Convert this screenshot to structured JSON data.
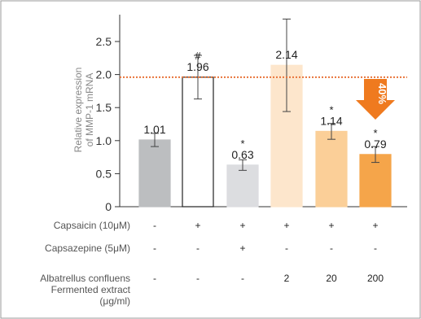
{
  "chart_data": {
    "type": "bar",
    "ylabel": "Relative expression\nof MMP-1 mRNA",
    "ylim": [
      0,
      2.8
    ],
    "yticks": [
      "0",
      "0.5",
      "1.0",
      "1.5",
      "2.0",
      "2.5"
    ],
    "ytick_values": [
      0,
      0.5,
      1.0,
      1.5,
      2.0,
      2.5
    ],
    "reference_line": 1.96,
    "bars": [
      {
        "value": 1.01,
        "label": "1.01",
        "err": 0.1,
        "mark": "",
        "fill": "#bcbec0",
        "stroke": "#bcbec0"
      },
      {
        "value": 1.96,
        "label": "1.96",
        "err": 0.33,
        "mark": "#",
        "fill": "#ffffff",
        "stroke": "#222222"
      },
      {
        "value": 0.63,
        "label": "0.63",
        "err": 0.08,
        "mark": "*",
        "fill": "#dcdde0",
        "stroke": "#dcdde0"
      },
      {
        "value": 2.14,
        "label": "2.14",
        "err": 0.7,
        "mark": "",
        "fill": "#fde6cc",
        "stroke": "#fde6cc"
      },
      {
        "value": 1.14,
        "label": "1.14",
        "err": 0.12,
        "mark": "*",
        "fill": "#fbcf98",
        "stroke": "#fbcf98"
      },
      {
        "value": 0.79,
        "label": "0.79",
        "err": 0.12,
        "mark": "*",
        "fill": "#f5a54a",
        "stroke": "#f5a54a"
      }
    ],
    "annotation": {
      "text": "40%",
      "color": "#ef7a1f"
    },
    "reference_color": "#e8743a"
  },
  "conditions": [
    {
      "label": "Capsaicin (10μM)",
      "values": [
        "-",
        "+",
        "+",
        "+",
        "+",
        "+"
      ]
    },
    {
      "label": "Capsazepine (5μM)",
      "values": [
        "-",
        "-",
        "+",
        "-",
        "-",
        "-"
      ]
    },
    {
      "label": "Albatrellus confluens\nFermented extract\n(μg/ml)",
      "values": [
        "-",
        "-",
        "-",
        "2",
        "20",
        "200"
      ]
    }
  ]
}
